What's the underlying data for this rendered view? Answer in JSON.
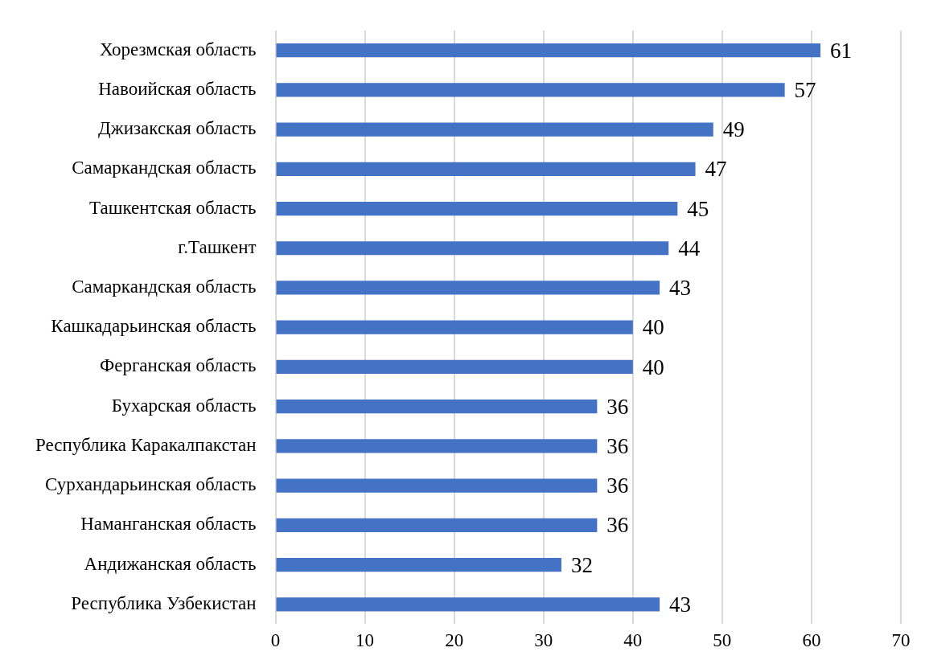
{
  "chart_data": {
    "type": "bar",
    "orientation": "horizontal",
    "categories": [
      "Хорезмская область",
      "Навоийская область",
      "Джизакская область",
      "Самаркандская область",
      "Ташкентская область",
      "г.Ташкент",
      "Самаркандская область",
      "Кашкадарьинская область",
      "Ферганская область",
      "Бухарская область",
      "Республика Каракалпакстан",
      "Сурхандарьинская область",
      "Наманганская область",
      "Андижанская область",
      "Республика Узбекистан"
    ],
    "values": [
      61,
      57,
      49,
      47,
      45,
      44,
      43,
      40,
      40,
      36,
      36,
      36,
      36,
      32,
      43
    ],
    "color": "#4472c4",
    "xlim": [
      0,
      70
    ],
    "xticks": [
      0,
      10,
      20,
      30,
      40,
      50,
      60,
      70
    ],
    "grid": "x",
    "legend": false,
    "data_labels": true
  }
}
